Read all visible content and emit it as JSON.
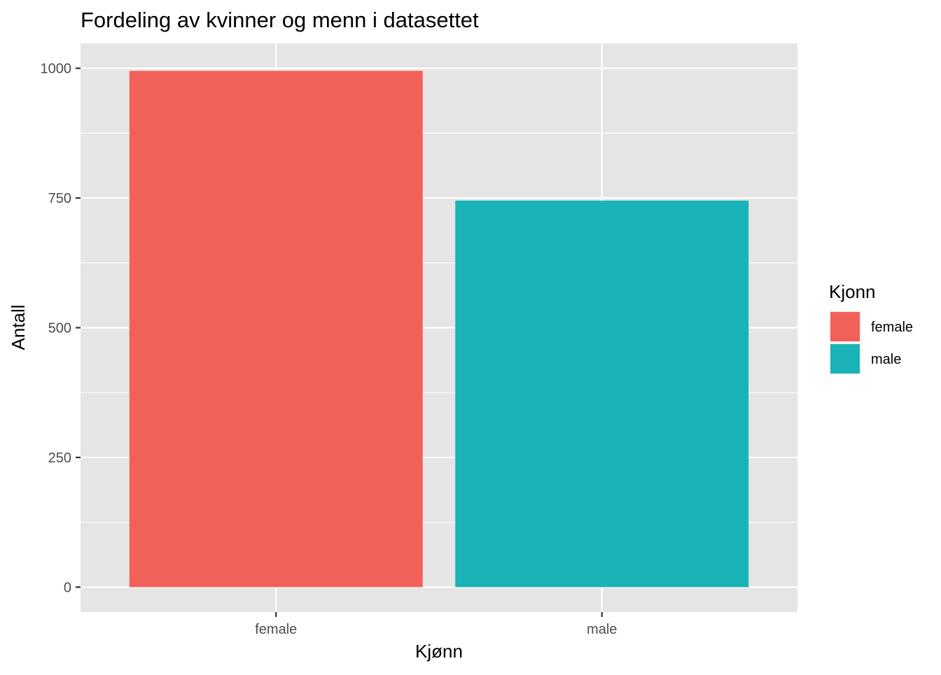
{
  "chart_data": {
    "type": "bar",
    "title": "Fordeling av kvinner og menn i datasettet",
    "xlabel": "Kjønn",
    "ylabel": "Antall",
    "categories": [
      "female",
      "male"
    ],
    "values": [
      995,
      745
    ],
    "ylim": [
      -48,
      1048
    ],
    "yticks": [
      0,
      250,
      500,
      750,
      1000
    ],
    "ytick_labels": [
      "0",
      "250",
      "500",
      "750",
      "1000"
    ],
    "colors": [
      "#F2605A",
      "#19B3B8"
    ],
    "panel_background": "#E5E5E5",
    "grid": true,
    "legend": {
      "title": "Kjonn",
      "position": "right",
      "entries": [
        "female",
        "male"
      ]
    }
  }
}
